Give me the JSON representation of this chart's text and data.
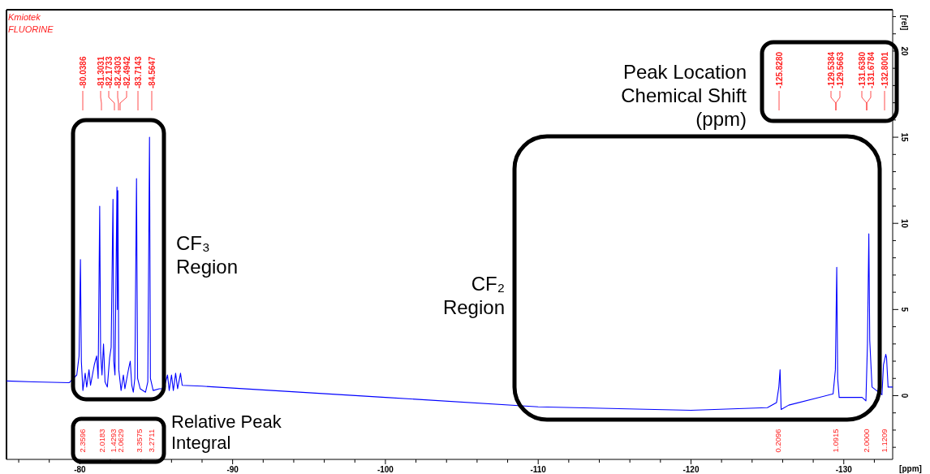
{
  "chart_data": {
    "type": "line",
    "xlabel": "[ppm]",
    "ylabel": "[rel]",
    "xlim": [
      -75.2,
      -133.2
    ],
    "ylim": [
      -3.7,
      22.4
    ],
    "xticks": [
      {
        "value": -76,
        "label": null
      },
      {
        "value": -78,
        "label": null
      },
      -80,
      {
        "value": -82,
        "label": null
      },
      {
        "value": -84,
        "label": null
      },
      {
        "value": -86,
        "label": null
      },
      {
        "value": -88,
        "label": null
      },
      -90,
      {
        "value": -92,
        "label": null
      },
      {
        "value": -94,
        "label": null
      },
      {
        "value": -96,
        "label": null
      },
      {
        "value": -98,
        "label": null
      },
      -100,
      {
        "value": -102,
        "label": null
      },
      {
        "value": -104,
        "label": null
      },
      {
        "value": -106,
        "label": null
      },
      {
        "value": -108,
        "label": null
      },
      -110,
      {
        "value": -112,
        "label": null
      },
      {
        "value": -114,
        "label": null
      },
      {
        "value": -116,
        "label": null
      },
      {
        "value": -118,
        "label": null
      },
      -120,
      {
        "value": -122,
        "label": null
      },
      {
        "value": -124,
        "label": null
      },
      {
        "value": -126,
        "label": null
      },
      {
        "value": -128,
        "label": null
      },
      -130,
      {
        "value": -132,
        "label": null
      }
    ],
    "yticks": [
      {
        "value": -3,
        "label": null
      },
      {
        "value": -2,
        "label": null
      },
      {
        "value": -1,
        "label": null
      },
      0,
      {
        "value": 1,
        "label": null
      },
      {
        "value": 2,
        "label": null
      },
      {
        "value": 3,
        "label": null
      },
      {
        "value": 4,
        "label": null
      },
      5,
      {
        "value": 6,
        "label": null
      },
      {
        "value": 7,
        "label": null
      },
      {
        "value": 8,
        "label": null
      },
      {
        "value": 9,
        "label": null
      },
      10,
      {
        "value": 11,
        "label": null
      },
      {
        "value": 12,
        "label": null
      },
      {
        "value": 13,
        "label": null
      },
      {
        "value": 14,
        "label": null
      },
      15,
      {
        "value": 16,
        "label": null
      },
      {
        "value": 17,
        "label": null
      },
      {
        "value": 18,
        "label": null
      },
      {
        "value": 19,
        "label": null
      },
      20,
      {
        "value": 21,
        "label": null
      },
      {
        "value": 22,
        "label": null
      }
    ],
    "grid": false,
    "marker": "none",
    "line_style": "solid",
    "series": [
      {
        "color": "#0000ff",
        "x": [
          -75.2,
          -77.0,
          -79.3,
          -79.8,
          -79.95,
          -80.04,
          -80.1,
          -80.2,
          -80.35,
          -80.45,
          -80.6,
          -80.7,
          -80.95,
          -81.1,
          -81.2,
          -81.3,
          -81.36,
          -81.45,
          -81.55,
          -81.65,
          -81.8,
          -81.95,
          -82.05,
          -82.17,
          -82.22,
          -82.3,
          -82.43,
          -82.46,
          -82.49,
          -82.55,
          -82.7,
          -82.85,
          -82.95,
          -83.2,
          -83.3,
          -83.4,
          -83.5,
          -83.6,
          -83.71,
          -83.78,
          -83.95,
          -84.3,
          -84.45,
          -84.56,
          -84.62,
          -84.8,
          -85.2,
          -85.5,
          -85.74,
          -85.85,
          -86.0,
          -86.12,
          -86.27,
          -86.4,
          -86.59,
          -86.7,
          -88.0,
          -100.0,
          -110.0,
          -120.0,
          -125.0,
          -125.6,
          -125.75,
          -125.83,
          -125.9,
          -126.4,
          -129.3,
          -129.45,
          -129.54,
          -129.6,
          -129.7,
          -131.2,
          -131.45,
          -131.55,
          -131.64,
          -131.7,
          -131.85,
          -132.5,
          -132.6,
          -132.75,
          -132.8,
          -132.9,
          -133.2
        ],
        "values": [
          0.85,
          0.8,
          0.75,
          1.2,
          2.3,
          7.9,
          2.0,
          0.3,
          1.3,
          0.5,
          1.5,
          0.6,
          1.8,
          2.3,
          1.0,
          11.0,
          2.5,
          1.2,
          3.0,
          0.8,
          0.5,
          2.2,
          2.8,
          11.4,
          2.0,
          1.2,
          12.1,
          5.0,
          11.9,
          1.5,
          0.3,
          1.2,
          0.4,
          1.6,
          2.0,
          0.6,
          0.2,
          1.0,
          12.6,
          1.0,
          0.4,
          0.2,
          0.8,
          15.0,
          1.0,
          0.3,
          0.4,
          0.4,
          1.2,
          0.3,
          1.2,
          0.3,
          1.3,
          0.4,
          1.3,
          0.6,
          0.55,
          -0.1,
          -0.65,
          -0.85,
          -0.7,
          -0.4,
          0.5,
          1.5,
          -0.8,
          -0.55,
          0.1,
          1.5,
          7.45,
          1.0,
          -0.1,
          -0.1,
          -0.3,
          3.0,
          9.4,
          3.2,
          0.5,
          0.05,
          1.8,
          2.4,
          2.2,
          0.5,
          0.5
        ]
      }
    ],
    "annotations": [
      "Kmiotek",
      "FLUORINE",
      "CF₃ Region",
      "CF₂ Region",
      "Peak Location Chemical Shift (ppm)",
      "Relative Peak Integral",
      "-80.0386",
      "-81.3031",
      "-82.1733",
      "-82.4303",
      "-82.4942",
      "-83.7143",
      "-84.5647",
      "-125.8280",
      "-129.5384",
      "-129.5663",
      "-131.6380",
      "-131.6784",
      "-132.8001",
      "2.3596",
      "2.0183",
      "1.4293",
      "2.0629",
      "3.3575",
      "3.2711",
      "0.2096",
      "1.0915",
      "2.0000",
      "1.1209"
    ]
  }
}
